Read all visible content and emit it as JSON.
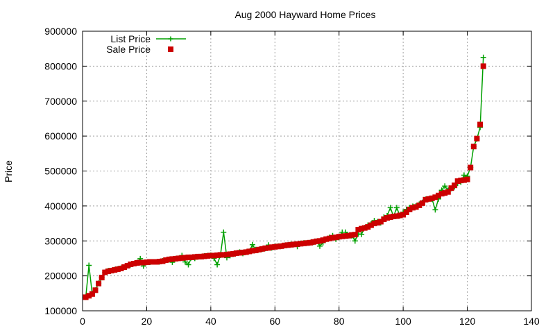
{
  "chart_data": {
    "type": "line",
    "title": "Aug 2000 Hayward Home Prices",
    "xlabel": "",
    "ylabel": "Price",
    "xlim": [
      0,
      140
    ],
    "ylim": [
      100000,
      900000
    ],
    "x_ticks": [
      "0",
      "20",
      "40",
      "60",
      "80",
      "100",
      "120",
      "140"
    ],
    "y_ticks": [
      "100000",
      "200000",
      "300000",
      "400000",
      "500000",
      "600000",
      "700000",
      "800000",
      "900000"
    ],
    "grid": true,
    "legend_position": "top-left",
    "series": [
      {
        "name": "List Price",
        "style": "line-with-plus-markers",
        "color": "#00a000",
        "values": [
          139000,
          230000,
          149000,
          159000,
          179000,
          195000,
          210000,
          215000,
          215000,
          218000,
          220000,
          222000,
          225000,
          229000,
          232000,
          235000,
          238000,
          249000,
          228000,
          239000,
          239000,
          240000,
          240000,
          240000,
          243000,
          245000,
          247000,
          239000,
          249000,
          250000,
          258000,
          240000,
          232000,
          252000,
          250000,
          254000,
          255000,
          257000,
          258000,
          259000,
          250000,
          232000,
          259000,
          325000,
          252000,
          258000,
          262000,
          265000,
          268000,
          264000,
          268000,
          270000,
          289000,
          275000,
          275000,
          276000,
          278000,
          288000,
          280000,
          284000,
          285000,
          285000,
          287000,
          288000,
          290000,
          290000,
          284000,
          293000,
          294000,
          294000,
          295000,
          296000,
          299000,
          285000,
          295000,
          305000,
          310000,
          315000,
          305000,
          310000,
          325000,
          325000,
          315000,
          315000,
          300000,
          320000,
          319000,
          338000,
          345000,
          349000,
          358000,
          355000,
          352000,
          368000,
          372000,
          395000,
          370000,
          395000,
          372000,
          382000,
          390000,
          395000,
          399000,
          400000,
          405000,
          410000,
          419000,
          420000,
          420000,
          389000,
          420000,
          445000,
          457000,
          445000,
          450000,
          455000,
          465000,
          468000,
          488000,
          485000,
          510000,
          570000,
          592000,
          625000,
          825000
        ]
      },
      {
        "name": "Sale Price",
        "style": "square-markers",
        "color": "#cc0000",
        "values": [
          139000,
          143000,
          148000,
          159000,
          178000,
          195000,
          210000,
          213000,
          215000,
          217000,
          219000,
          221000,
          225000,
          229000,
          233000,
          235000,
          237000,
          238000,
          238000,
          239000,
          240000,
          240000,
          240000,
          241000,
          242000,
          245000,
          247000,
          248000,
          249000,
          250000,
          251000,
          252000,
          253000,
          253000,
          254000,
          255000,
          255000,
          256000,
          257000,
          258000,
          258000,
          259000,
          260000,
          260000,
          261000,
          262000,
          263000,
          265000,
          266000,
          267000,
          268000,
          270000,
          272000,
          273000,
          275000,
          277000,
          279000,
          280000,
          282000,
          283000,
          284000,
          285000,
          287000,
          288000,
          289000,
          290000,
          291000,
          292000,
          293000,
          294000,
          295000,
          297000,
          299000,
          300000,
          302000,
          305000,
          307000,
          309000,
          310000,
          312000,
          313000,
          314000,
          315000,
          317000,
          318000,
          332000,
          335000,
          337000,
          340000,
          345000,
          350000,
          352000,
          355000,
          362000,
          366000,
          368000,
          370000,
          371000,
          373000,
          375000,
          382000,
          390000,
          395000,
          397000,
          402000,
          408000,
          418000,
          420000,
          422000,
          425000,
          430000,
          435000,
          437000,
          440000,
          451000,
          459000,
          471000,
          473000,
          474000,
          476000,
          510000,
          570000,
          593000,
          633000,
          800000
        ]
      }
    ]
  }
}
